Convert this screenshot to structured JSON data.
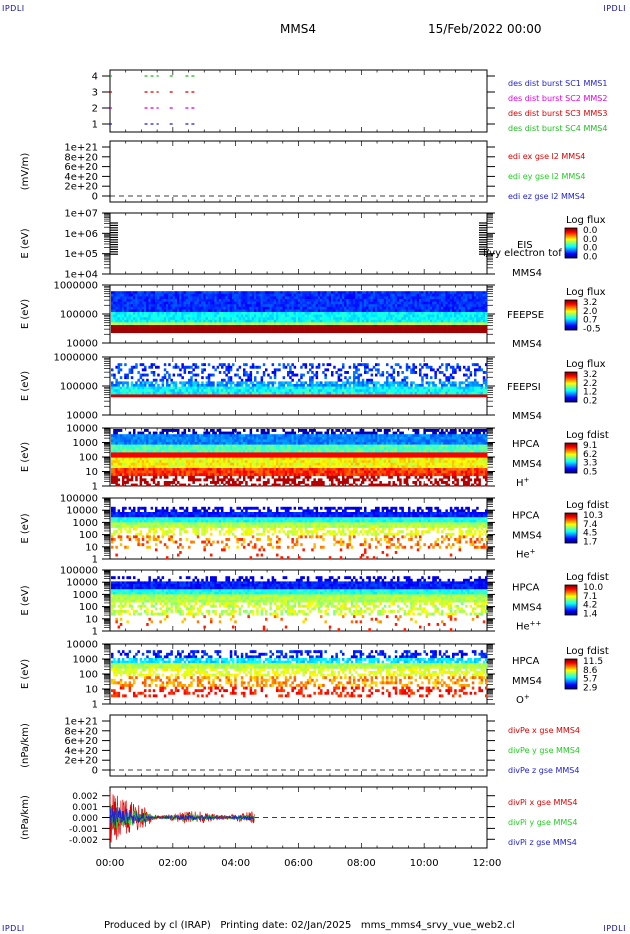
{
  "header": {
    "corner_tl": "IPDLI",
    "corner_tr": "IPDLI",
    "corner_bl": "IPDLI",
    "corner_br": "IPDLI",
    "spacecraft": "MMS4",
    "date": "15/Feb/2022 00:00"
  },
  "footer": {
    "text": "Produced by cl (IRAP)   Printing date: 02/Jan/2025   mms_mms4_srvy_vue_web2.cl"
  },
  "colors": {
    "burst_sc1": "#2222cc",
    "burst_sc2": "#dd0000",
    "burst_sc3": "#dd00dd",
    "burst_sc4": "#22bb22",
    "red": "#dd0000",
    "green": "#22cc22",
    "blue": "#2222cc"
  },
  "chart_data": [
    {
      "type": "scatter",
      "panel": "burst",
      "yticks": [
        "1",
        "2",
        "3",
        "4"
      ],
      "legend": [
        "des dist burst SC1 MMS1",
        "des dist burst SC2 MMS2",
        "des dist burst SC3 MMS3",
        "des dist burst SC4 MMS4"
      ],
      "series": [
        {
          "name": "des dist burst SC1 MMS1",
          "y": 1,
          "intervals": [
            [
              0.0,
              0.05
            ],
            [
              1.1,
              1.55
            ],
            [
              1.9,
              2.05
            ],
            [
              2.4,
              2.7
            ]
          ]
        },
        {
          "name": "des dist burst SC2 MMS2",
          "y": 2,
          "intervals": [
            [
              0.0,
              0.05
            ],
            [
              1.1,
              1.55
            ],
            [
              1.9,
              2.05
            ],
            [
              2.4,
              2.7
            ]
          ]
        },
        {
          "name": "des dist burst SC3 MMS3",
          "y": 3,
          "intervals": [
            [
              0.0,
              0.05
            ],
            [
              1.1,
              1.55
            ],
            [
              1.9,
              2.05
            ],
            [
              2.4,
              2.7
            ]
          ]
        },
        {
          "name": "des dist burst SC4 MMS4",
          "y": 4,
          "intervals": [
            [
              0.0,
              0.05
            ],
            [
              1.1,
              1.55
            ],
            [
              1.9,
              2.05
            ],
            [
              2.4,
              2.7
            ]
          ]
        }
      ]
    },
    {
      "type": "line",
      "panel": "edi",
      "ylabel": "(mV/m)",
      "yticks": [
        "0",
        "2e+20",
        "4e+20",
        "6e+20",
        "8e+20",
        "1e+21"
      ],
      "legend": [
        "edi ex gse l2 MMS4",
        "edi ey gse l2 MMS4",
        "edi ez gse l2 MMS4"
      ]
    },
    {
      "type": "heatmap",
      "panel": "eis",
      "ylabel": "E (eV)",
      "yticks": [
        "1e+04",
        "1e+05",
        "1e+06",
        "1e+07"
      ],
      "instrument": "EIS",
      "spacecraft": "MMS4",
      "overlay_text": "l/vy electron tof",
      "colorbar_title": "Log flux",
      "colorbar_ticks": [
        "0.0",
        "0.0",
        "0.0",
        "0.0"
      ]
    },
    {
      "type": "heatmap",
      "panel": "feepse",
      "ylabel": "E (eV)",
      "yticks": [
        "10000",
        "100000",
        "1000000"
      ],
      "instrument": "FEEPSE",
      "spacecraft": "MMS4",
      "colorbar_title": "Log flux",
      "colorbar_ticks": [
        "3.2",
        "2.0",
        "0.7",
        "-0.5"
      ]
    },
    {
      "type": "heatmap",
      "panel": "feepsi",
      "ylabel": "E (eV)",
      "yticks": [
        "10000",
        "100000",
        "1000000"
      ],
      "instrument": "FEEPSI",
      "spacecraft": "MMS4",
      "colorbar_title": "Log flux",
      "colorbar_ticks": [
        "3.2",
        "2.2",
        "1.2",
        "0.2"
      ]
    },
    {
      "type": "heatmap",
      "panel": "hpca_h",
      "ylabel": "E (eV)",
      "yticks": [
        "1",
        "10",
        "100",
        "1000",
        "10000"
      ],
      "instrument": "HPCA",
      "spacecraft": "MMS4",
      "species": "H",
      "species_charge": "+",
      "colorbar_title": "Log fdist",
      "colorbar_ticks": [
        "9.1",
        "6.2",
        "3.3",
        "0.5"
      ]
    },
    {
      "type": "heatmap",
      "panel": "hpca_he",
      "ylabel": "E (eV)",
      "yticks": [
        "1",
        "10",
        "100",
        "1000",
        "10000",
        "100000"
      ],
      "instrument": "HPCA",
      "spacecraft": "MMS4",
      "species": "He",
      "species_charge": "+",
      "colorbar_title": "Log fdist",
      "colorbar_ticks": [
        "10.3",
        "7.4",
        "4.5",
        "1.7"
      ]
    },
    {
      "type": "heatmap",
      "panel": "hpca_hepp",
      "ylabel": "E (eV)",
      "yticks": [
        "1",
        "10",
        "100",
        "1000",
        "10000",
        "100000"
      ],
      "instrument": "HPCA",
      "spacecraft": "MMS4",
      "species": "He",
      "species_charge": "++",
      "colorbar_title": "Log fdist",
      "colorbar_ticks": [
        "10.0",
        "7.1",
        "4.2",
        "1.4"
      ]
    },
    {
      "type": "heatmap",
      "panel": "hpca_o",
      "ylabel": "E (eV)",
      "yticks": [
        "1",
        "10",
        "100",
        "1000",
        "10000"
      ],
      "instrument": "HPCA",
      "spacecraft": "MMS4",
      "species": "O",
      "species_charge": "+",
      "colorbar_title": "Log fdist",
      "colorbar_ticks": [
        "11.5",
        "8.6",
        "5.7",
        "2.9"
      ]
    },
    {
      "type": "line",
      "panel": "divpe",
      "ylabel": "(nPa/km)",
      "yticks": [
        "0",
        "2e+20",
        "4e+20",
        "6e+20",
        "8e+20",
        "1e+21"
      ],
      "legend": [
        "divPe x gse MMS4",
        "divPe y gse MMS4",
        "divPe z gse MMS4"
      ]
    },
    {
      "type": "line",
      "panel": "divpi",
      "ylabel": "(nPa/km)",
      "yticks": [
        "-0.002",
        "-0.001",
        "0.000",
        "0.001",
        "0.002"
      ],
      "ylim": [
        -0.0028,
        0.0028
      ],
      "legend": [
        "divPi x gse MMS4",
        "divPi y gse MMS4",
        "divPi z gse MMS4"
      ],
      "data_end_hour": 4.6
    }
  ],
  "xaxis": {
    "ticks": [
      "00:00",
      "02:00",
      "04:00",
      "06:00",
      "08:00",
      "10:00",
      "12:00"
    ],
    "hours": [
      0,
      2,
      4,
      6,
      8,
      10,
      12
    ]
  }
}
